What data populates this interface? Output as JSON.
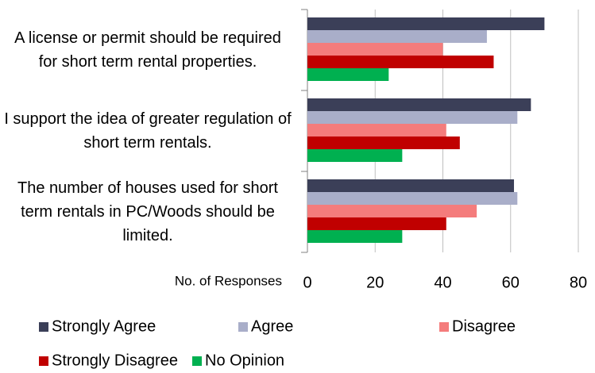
{
  "chart_data": {
    "type": "bar",
    "orientation": "horizontal",
    "categories": [
      "A license or permit should be required for short term rental properties.",
      "I support the idea of greater regulation of short term rentals.",
      "The number of houses used for short term rentals in PC/Woods should be limited."
    ],
    "series": [
      {
        "name": "Strongly Agree",
        "color": "#3b3f58",
        "values": [
          70,
          66,
          61
        ]
      },
      {
        "name": "Agree",
        "color": "#a9aec9",
        "values": [
          53,
          62,
          62
        ]
      },
      {
        "name": "Disagree",
        "color": "#f47c7c",
        "values": [
          40,
          41,
          50
        ]
      },
      {
        "name": "Strongly Disagree",
        "color": "#c00000",
        "values": [
          55,
          45,
          41
        ]
      },
      {
        "name": "No Opinion",
        "color": "#00b050",
        "values": [
          24,
          28,
          28
        ]
      }
    ],
    "x_label": "No. of  Responses",
    "xlim": [
      0,
      80
    ],
    "xticks": [
      0,
      20,
      40,
      60,
      80
    ],
    "grid": true,
    "legend": "bottom"
  }
}
